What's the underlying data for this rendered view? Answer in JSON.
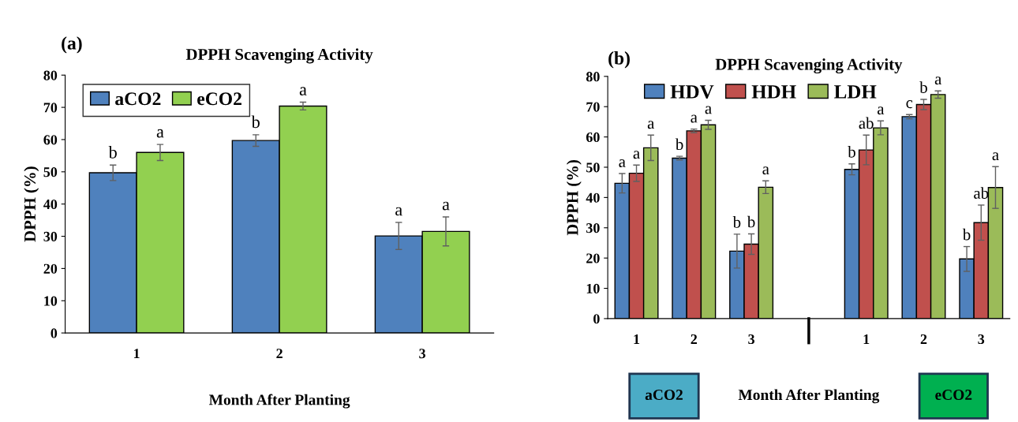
{
  "chart_data": [
    {
      "type": "bar",
      "title": "DPPH Scavenging Activity",
      "xlabel": "Month After Planting",
      "ylabel": "DPPH (%)",
      "annotations": [
        "(a)"
      ],
      "categories": [
        "1",
        "2",
        "3"
      ],
      "series": [
        {
          "name": "aCO2",
          "color": "#4f81bd",
          "values": [
            49.7,
            59.7,
            30.1
          ],
          "errors": [
            2.4,
            1.8,
            4.2
          ],
          "value_labels": [
            "b",
            "b",
            "a"
          ]
        },
        {
          "name": "eCO2",
          "color": "#92d050",
          "values": [
            56.0,
            70.4,
            31.5
          ],
          "errors": [
            2.5,
            1.2,
            4.5
          ],
          "value_labels": [
            "a",
            "a",
            "a"
          ]
        }
      ],
      "ylim": [
        0,
        80
      ],
      "yticks": [
        0,
        10,
        20,
        30,
        40,
        50,
        60,
        70,
        80
      ],
      "grid": false,
      "legend": "top left"
    },
    {
      "type": "bar",
      "title": "DPPH Scavenging Activity",
      "xlabel": "Month After Planting",
      "ylabel": "DPPH (%)",
      "annotations": [
        "(b)",
        "aCO2",
        "eCO2"
      ],
      "categories": [
        "1",
        "2",
        "3",
        null,
        "1",
        "2",
        "3"
      ],
      "series": [
        {
          "name": "HDV",
          "color": "#4f81bd",
          "values": [
            44.7,
            53.0,
            22.3,
            null,
            49.3,
            66.7,
            19.7
          ],
          "errors": [
            3.2,
            0.6,
            5.6,
            null,
            1.8,
            0.7,
            4.1
          ],
          "value_labels": [
            "a",
            "b",
            "b",
            null,
            "b",
            "c",
            "b"
          ]
        },
        {
          "name": "HDH",
          "color": "#c0504d",
          "values": [
            48.0,
            62.0,
            24.6,
            null,
            55.7,
            70.7,
            31.7
          ],
          "errors": [
            2.7,
            0.6,
            3.4,
            null,
            4.9,
            1.7,
            5.8
          ],
          "value_labels": [
            "a",
            "a",
            "b",
            null,
            "ab",
            "b",
            "ab"
          ]
        },
        {
          "name": "LDH",
          "color": "#9bbb59",
          "values": [
            56.4,
            64.0,
            43.4,
            null,
            63.0,
            74.0,
            43.3
          ],
          "errors": [
            4.2,
            1.5,
            2.1,
            null,
            2.3,
            1.2,
            6.9
          ],
          "value_labels": [
            "a",
            "a",
            "a",
            null,
            "a",
            "a",
            "a"
          ]
        }
      ],
      "ylim": [
        0,
        80
      ],
      "yticks": [
        0,
        10,
        20,
        30,
        40,
        50,
        60,
        70,
        80
      ],
      "grid": false,
      "legend": "top"
    }
  ]
}
